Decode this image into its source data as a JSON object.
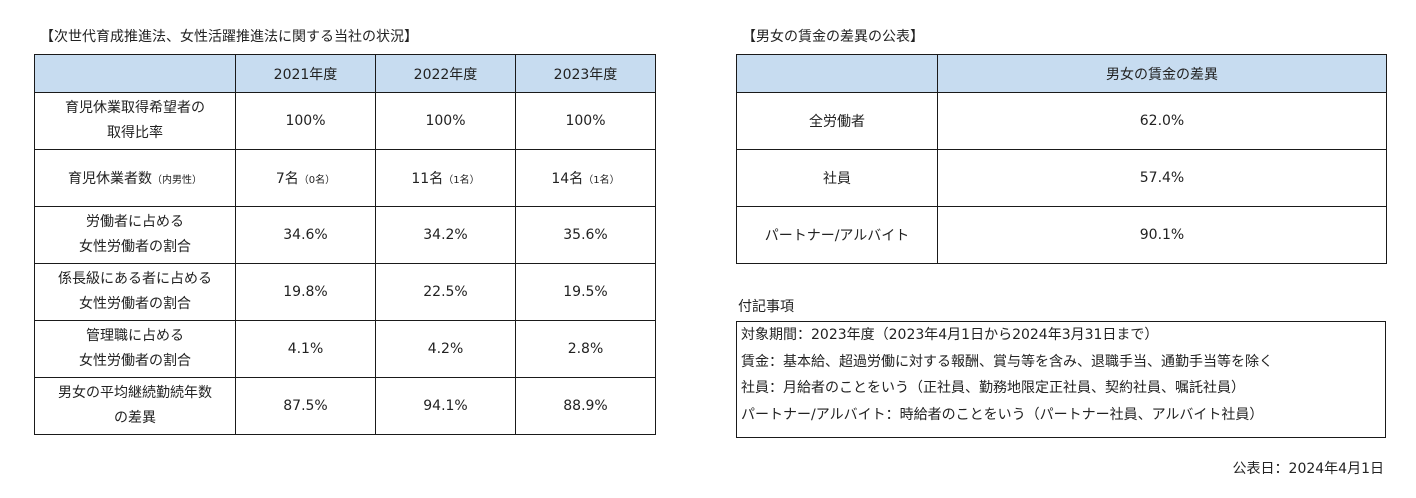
{
  "left": {
    "title": "【次世代育成推進法、女性活躍推進法に関する当社の状況】",
    "headers": [
      "",
      "2021年度",
      "2022年度",
      "2023年度"
    ],
    "rows": [
      {
        "label": [
          "育児休業取得希望者の",
          "取得比率"
        ],
        "values": [
          {
            "main": "100%",
            "sub": ""
          },
          {
            "main": "100%",
            "sub": ""
          },
          {
            "main": "100%",
            "sub": ""
          }
        ]
      },
      {
        "label": [
          "育児休業者数"
        ],
        "label_sub": "（内男性）",
        "values": [
          {
            "main": "7名",
            "sub": "（0名）"
          },
          {
            "main": "11名",
            "sub": "（1名）"
          },
          {
            "main": "14名",
            "sub": "（1名）"
          }
        ]
      },
      {
        "label": [
          "労働者に占める",
          "女性労働者の割合"
        ],
        "values": [
          {
            "main": "34.6%",
            "sub": ""
          },
          {
            "main": "34.2%",
            "sub": ""
          },
          {
            "main": "35.6%",
            "sub": ""
          }
        ]
      },
      {
        "label": [
          "係長級にある者に占める",
          "女性労働者の割合"
        ],
        "values": [
          {
            "main": "19.8%",
            "sub": ""
          },
          {
            "main": "22.5%",
            "sub": ""
          },
          {
            "main": "19.5%",
            "sub": ""
          }
        ]
      },
      {
        "label": [
          "管理職に占める",
          "女性労働者の割合"
        ],
        "values": [
          {
            "main": "4.1%",
            "sub": ""
          },
          {
            "main": "4.2%",
            "sub": ""
          },
          {
            "main": "2.8%",
            "sub": ""
          }
        ]
      },
      {
        "label": [
          "男女の平均継続勤続年数",
          "の差異"
        ],
        "values": [
          {
            "main": "87.5%",
            "sub": ""
          },
          {
            "main": "94.1%",
            "sub": ""
          },
          {
            "main": "88.9%",
            "sub": ""
          }
        ]
      }
    ]
  },
  "right": {
    "title": "【男女の賃金の差異の公表】",
    "headers": [
      "",
      "男女の賃金の差異"
    ],
    "rows": [
      {
        "label": "全労働者",
        "value": "62.0%"
      },
      {
        "label": "社員",
        "value": "57.4%"
      },
      {
        "label": "パートナー/アルバイト",
        "value": "90.1%"
      }
    ]
  },
  "notes": {
    "title": "付記事項",
    "lines": [
      "対象期間：2023年度（2023年4月1日から2024年3月31日まで）",
      "賃金：基本給、超過労働に対する報酬、賞与等を含み、退職手当、通勤手当等を除く",
      "社員：月給者のことをいう（正社員、勤務地限定正社員、契約社員、嘱託社員）",
      "パートナー/アルバイト：時給者のことをいう（パートナー社員、アルバイト社員）"
    ]
  },
  "publish_date": "公表日：2024年4月1日"
}
